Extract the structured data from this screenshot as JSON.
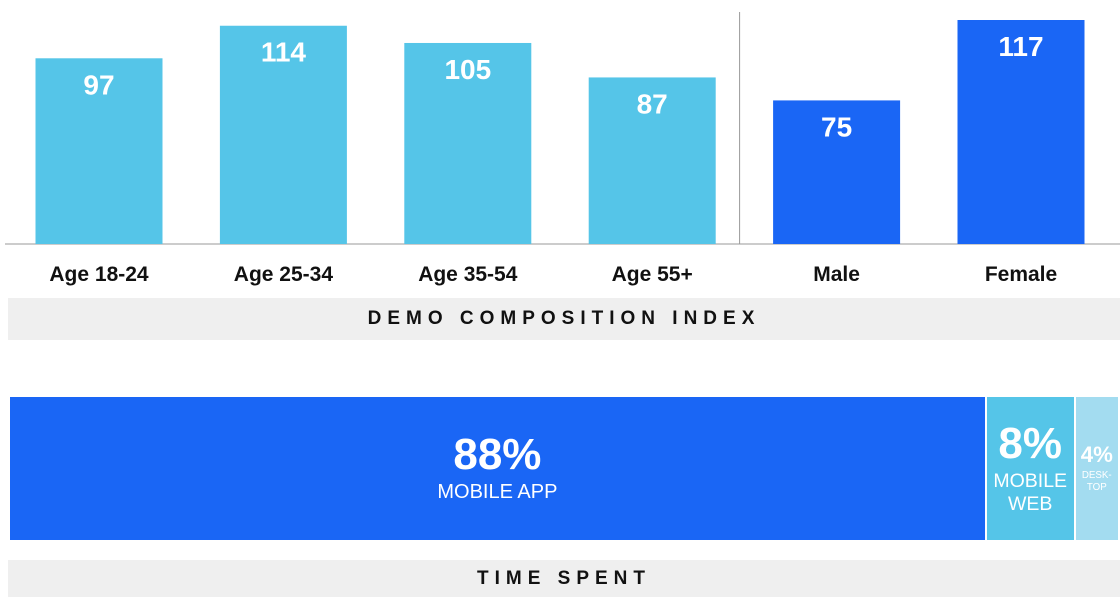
{
  "chart_data": [
    {
      "type": "bar",
      "title": "DEMO COMPOSITION INDEX",
      "categories": [
        "Age 18-24",
        "Age 25-34",
        "Age 35-54",
        "Age 55+",
        "Male",
        "Female"
      ],
      "values": [
        97,
        114,
        105,
        87,
        75,
        117
      ],
      "colors": [
        "#55c5e8",
        "#55c5e8",
        "#55c5e8",
        "#55c5e8",
        "#1a66f5",
        "#1a66f5"
      ]
    },
    {
      "type": "stacked_bar",
      "title": "TIME SPENT",
      "categories": [
        "MOBILE APP",
        "MOBILE WEB",
        "DESK-TOP"
      ],
      "values": [
        88,
        8,
        4
      ],
      "value_labels": [
        "88%",
        "8%",
        "4%"
      ],
      "colors": [
        "#1a66f5",
        "#55c5e8",
        "#a3dcf0"
      ]
    }
  ]
}
